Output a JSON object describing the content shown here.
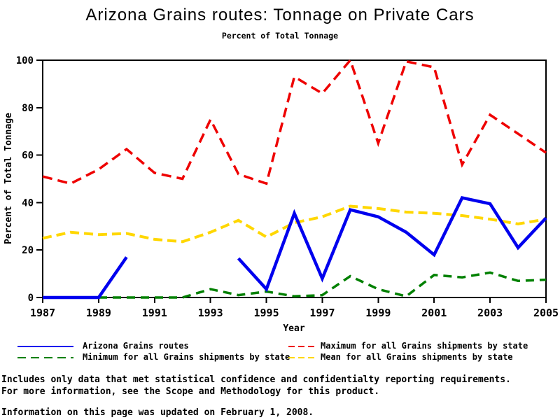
{
  "header": {
    "title": "Arizona Grains routes: Tonnage on Private Cars",
    "subtitle": "Percent of Total Tonnage"
  },
  "chart_data": {
    "type": "line",
    "title": "Arizona Grains routes: Tonnage on Private Cars",
    "subtitle": "Percent of Total Tonnage",
    "xlabel": "Year",
    "ylabel": "Percent of Total Tonnage",
    "xlim": [
      1987,
      2005
    ],
    "ylim": [
      0,
      100
    ],
    "xticks": [
      1987,
      1989,
      1991,
      1993,
      1995,
      1997,
      1999,
      2001,
      2003,
      2005
    ],
    "yticks": [
      0,
      20,
      40,
      60,
      80,
      100
    ],
    "grid": false,
    "legend_position": "bottom",
    "x": [
      1987,
      1988,
      1989,
      1990,
      1991,
      1992,
      1993,
      1994,
      1995,
      1996,
      1997,
      1998,
      1999,
      2000,
      2001,
      2002,
      2003,
      2004,
      2005
    ],
    "series": [
      {
        "name": "Arizona Grains routes",
        "color": "#0000EE",
        "style": "solid",
        "dash": "",
        "width": 4.5,
        "values": [
          0,
          0,
          0,
          17,
          null,
          null,
          null,
          16.5,
          3.5,
          35.5,
          8,
          37,
          34,
          27.5,
          18,
          42,
          39.5,
          21,
          33.5
        ]
      },
      {
        "name": "Maximum for all Grains shipments by state",
        "color": "#EE0000",
        "style": "dashed",
        "dash": "14 8",
        "width": 3.5,
        "values": [
          51,
          48,
          54,
          62.5,
          52.5,
          50,
          75,
          52,
          48,
          93,
          86,
          100,
          65,
          99.5,
          97,
          56,
          77,
          69,
          61
        ]
      },
      {
        "name": "Minimum for all Grains shipments by state",
        "color": "#008000",
        "style": "dashed",
        "dash": "12 8",
        "width": 3.5,
        "values": [
          0,
          0,
          0,
          0,
          0,
          0,
          3.5,
          1,
          2.5,
          0.5,
          1,
          9,
          3.5,
          0.5,
          9.5,
          8.5,
          10.5,
          7,
          7.5
        ]
      },
      {
        "name": "Mean for all Grains shipments by state",
        "color": "#FFD700",
        "style": "dashed",
        "dash": "13 7",
        "width": 4,
        "values": [
          25,
          27.5,
          26.5,
          27,
          24.5,
          23.5,
          27.5,
          32.5,
          25.5,
          31.5,
          34,
          38.5,
          37.5,
          36,
          35.5,
          34.5,
          33,
          31,
          33
        ]
      }
    ]
  },
  "footer": {
    "line1": "Includes only data that met statistical confidence and confidentialty reporting requirements.",
    "line2": "For more information, see the Scope and Methodology for this product.",
    "updated": "Information on this page was updated on February 1, 2008."
  }
}
